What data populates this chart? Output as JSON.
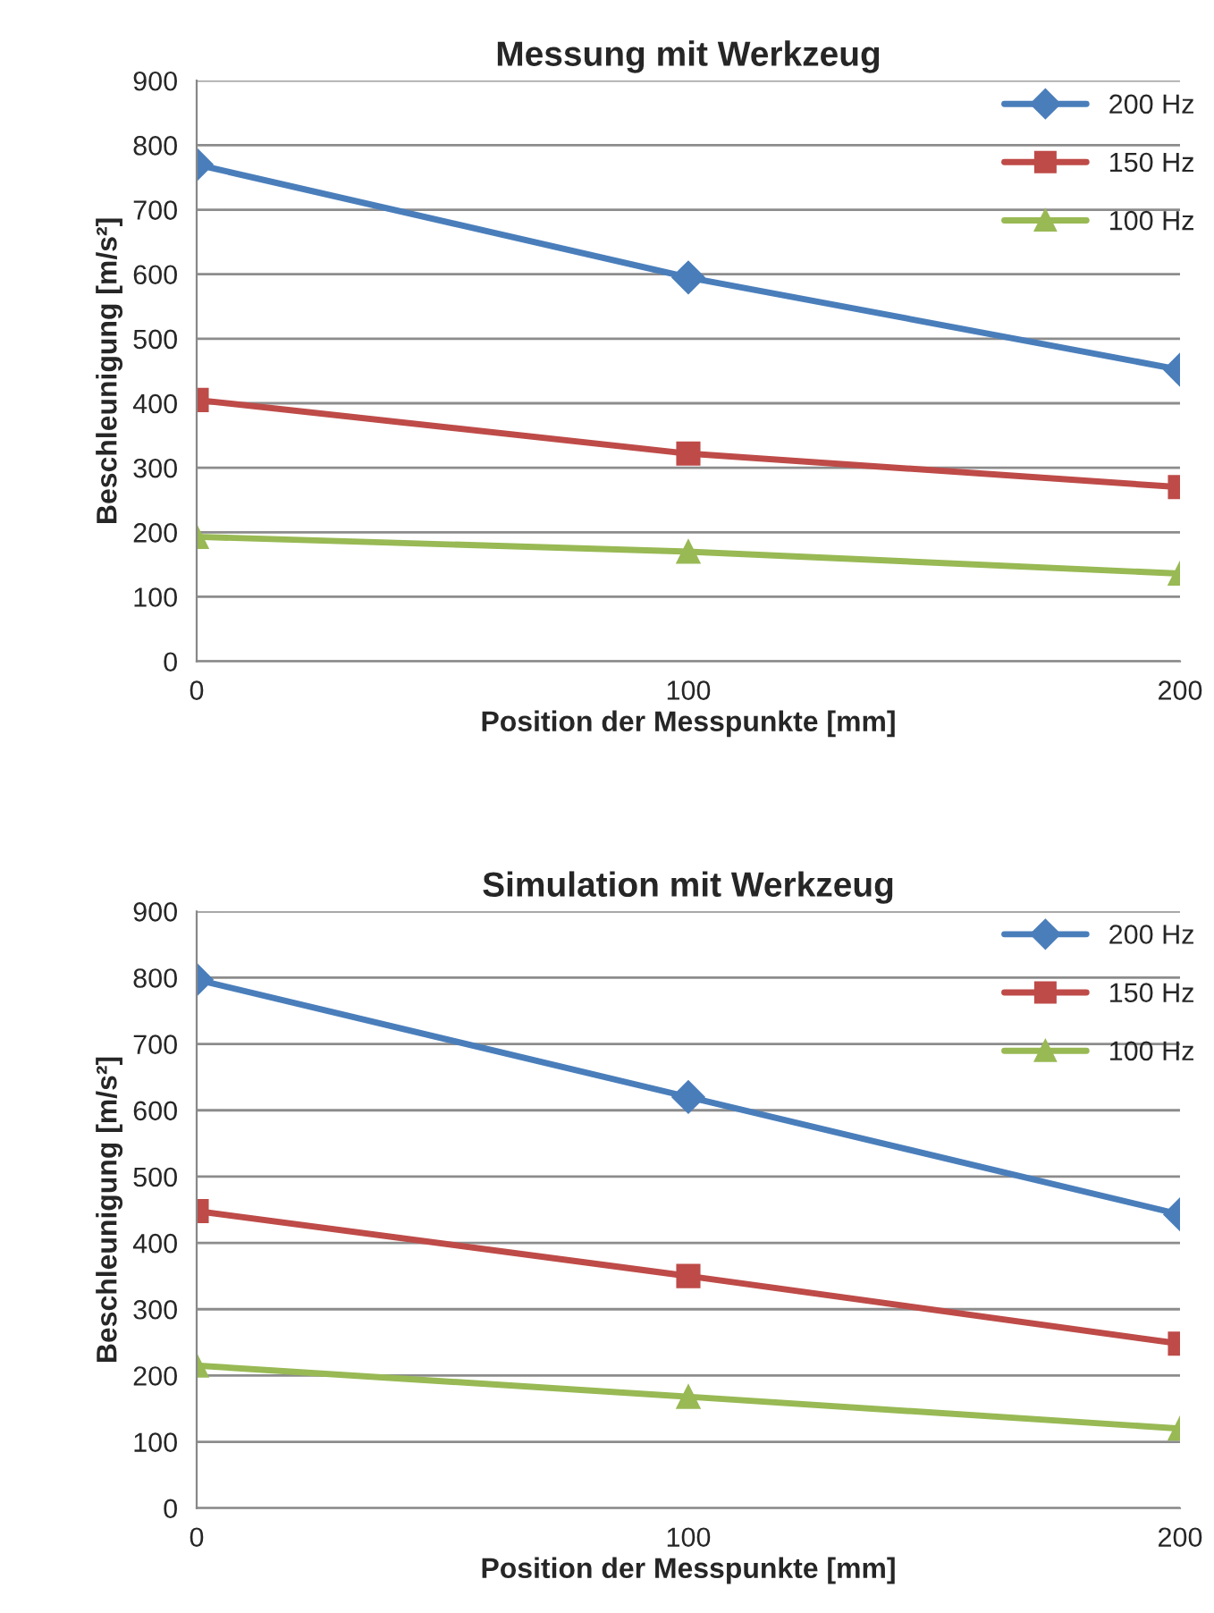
{
  "chart_data": [
    {
      "type": "line",
      "title": "Messung mit Werkzeug",
      "xlabel": "Position der Messpunkte [mm]",
      "ylabel": "Beschleunigung [m/s²]",
      "x": [
        0,
        100,
        200
      ],
      "xlim": [
        0,
        200
      ],
      "xticks": [
        0,
        100,
        200
      ],
      "ylim": [
        0,
        900
      ],
      "yticks": [
        0,
        100,
        200,
        300,
        400,
        500,
        600,
        700,
        800,
        900
      ],
      "grid": "y",
      "legend": "top right",
      "line_style": "solid",
      "series": [
        {
          "name": "200 Hz",
          "color": "#4a7ebb",
          "marker": "diamond",
          "values": [
            770,
            595,
            452
          ]
        },
        {
          "name": "150 Hz",
          "color": "#be4b48",
          "marker": "square",
          "values": [
            405,
            322,
            270
          ]
        },
        {
          "name": "100 Hz",
          "color": "#98b954",
          "marker": "triangle",
          "values": [
            193,
            170,
            136
          ]
        }
      ]
    },
    {
      "type": "line",
      "title": "Simulation mit Werkzeug",
      "xlabel": "Position der Messpunkte [mm]",
      "ylabel": "Beschleunigung [m/s²]",
      "x": [
        0,
        100,
        200
      ],
      "xlim": [
        0,
        200
      ],
      "xticks": [
        0,
        100,
        200
      ],
      "ylim": [
        0,
        900
      ],
      "yticks": [
        0,
        100,
        200,
        300,
        400,
        500,
        600,
        700,
        800,
        900
      ],
      "grid": "y",
      "legend": "top right",
      "line_style": "solid",
      "series": [
        {
          "name": "200 Hz",
          "color": "#4a7ebb",
          "marker": "diamond",
          "values": [
            797,
            620,
            443
          ]
        },
        {
          "name": "150 Hz",
          "color": "#be4b48",
          "marker": "square",
          "values": [
            448,
            350,
            248
          ]
        },
        {
          "name": "100 Hz",
          "color": "#98b954",
          "marker": "triangle",
          "values": [
            215,
            168,
            120
          ]
        }
      ]
    }
  ]
}
